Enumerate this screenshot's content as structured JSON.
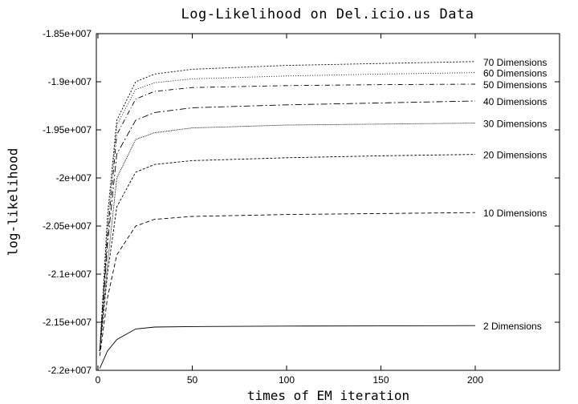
{
  "chart_data": {
    "type": "line",
    "title": "Log-Likelihood on Del.icio.us Data",
    "xlabel": "times of EM iteration",
    "ylabel": "log-likelihood",
    "xlim": [
      0,
      245
    ],
    "ylim": [
      -22000000,
      -18500000
    ],
    "x_ticks": [
      0,
      50,
      100,
      150,
      200
    ],
    "x_tick_labels": [
      "0",
      "50",
      "100",
      "150",
      "200"
    ],
    "y_ticks": [
      -22000000,
      -21500000,
      -21000000,
      -20500000,
      -20000000,
      -19500000,
      -19000000,
      -18500000
    ],
    "y_tick_labels": [
      "-2.2e+007",
      "-2.15e+007",
      "-2.1e+007",
      "-2.05e+007",
      "-2e+007",
      "-1.95e+007",
      "-1.9e+007",
      "-1.85e+007"
    ],
    "grid": false,
    "legend": "inline-right",
    "x": [
      1,
      5,
      10,
      20,
      30,
      50,
      100,
      150,
      200
    ],
    "series": [
      {
        "name": "70 Dimensions",
        "dash": "2,2",
        "values": [
          -21800000,
          -20400000,
          -19400000,
          -19000000,
          -18920000,
          -18870000,
          -18830000,
          -18810000,
          -18790000
        ]
      },
      {
        "name": "60 Dimensions",
        "dash": "1,2",
        "values": [
          -21800000,
          -20500000,
          -19450000,
          -19080000,
          -19010000,
          -18970000,
          -18940000,
          -18920000,
          -18905000
        ]
      },
      {
        "name": "50 Dimensions",
        "dash": "6,3,1,3",
        "values": [
          -21800000,
          -20600000,
          -19550000,
          -19180000,
          -19100000,
          -19060000,
          -19040000,
          -19030000,
          -19025000
        ]
      },
      {
        "name": "40 Dimensions",
        "dash": "8,3,2,3",
        "values": [
          -21800000,
          -20700000,
          -19750000,
          -19400000,
          -19320000,
          -19270000,
          -19240000,
          -19220000,
          -19200000
        ]
      },
      {
        "name": "30 Dimensions",
        "dash": "1,1",
        "values": [
          -21800000,
          -20900000,
          -20000000,
          -19600000,
          -19530000,
          -19480000,
          -19450000,
          -19440000,
          -19430000
        ]
      },
      {
        "name": "20 Dimensions",
        "dash": "3,2",
        "values": [
          -21800000,
          -21000000,
          -20300000,
          -19940000,
          -19860000,
          -19820000,
          -19790000,
          -19770000,
          -19755000
        ]
      },
      {
        "name": "10 Dimensions",
        "dash": "5,3",
        "values": [
          -21850000,
          -21250000,
          -20800000,
          -20500000,
          -20430000,
          -20400000,
          -20380000,
          -20370000,
          -20360000
        ]
      },
      {
        "name": "2  Dimensions",
        "dash": "",
        "values": [
          -21980000,
          -21800000,
          -21680000,
          -21570000,
          -21550000,
          -21545000,
          -21540000,
          -21538000,
          -21535000
        ]
      }
    ]
  }
}
